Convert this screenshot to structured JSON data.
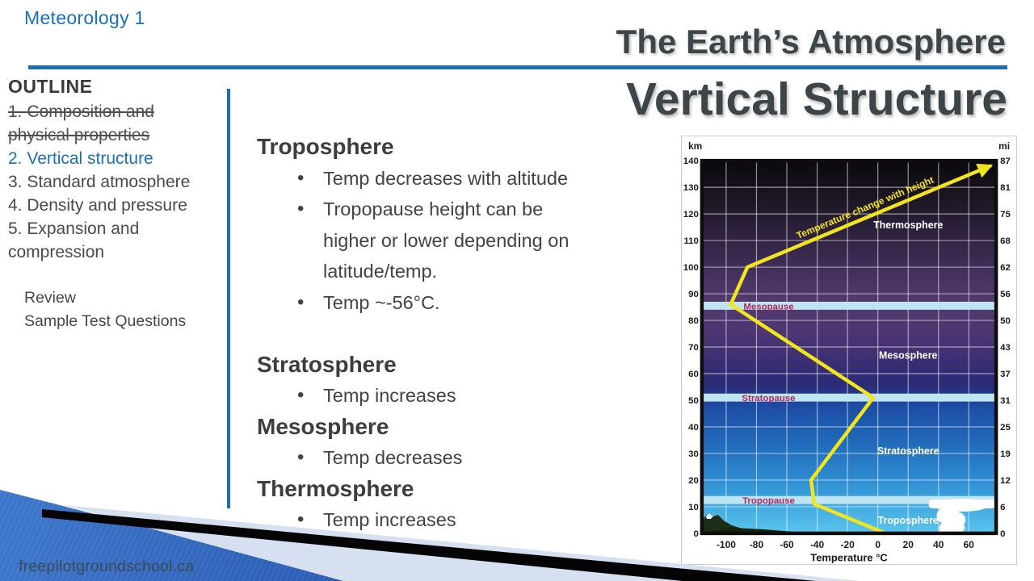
{
  "slide": {
    "course_label": "Meteorology 1",
    "title": "The Earth’s Atmosphere",
    "subtitle": "Vertical Structure",
    "watermark": "freepilotgroundschool.ca",
    "accent_color": "#1b6fb5",
    "title_color": "#3e4549"
  },
  "outline": {
    "heading": "OUTLINE",
    "items": [
      {
        "label": "1. Composition and physical properties",
        "state": "completed"
      },
      {
        "label": "2. Vertical structure",
        "state": "current"
      },
      {
        "label": "3. Standard atmosphere",
        "state": "default"
      },
      {
        "label": "4. Density and pressure",
        "state": "default"
      },
      {
        "label": "5. Expansion and compression",
        "state": "default"
      }
    ],
    "extras": [
      "Review",
      "Sample Test Questions"
    ]
  },
  "content": {
    "sections": [
      {
        "heading": "Troposphere",
        "bullets": [
          "Temp decreases with altitude",
          "Tropopause height can be higher or lower depending on latitude/temp.",
          "Temp ~-56°C."
        ]
      },
      {
        "heading": "Stratosphere",
        "bullets": [
          "Temp increases"
        ]
      },
      {
        "heading": "Mesosphere",
        "bullets": [
          "Temp decreases"
        ]
      },
      {
        "heading": "Thermosphere",
        "bullets": [
          "Temp increases"
        ]
      }
    ]
  },
  "chart_data": {
    "type": "line",
    "title": "Temperature change with height",
    "xlabel": "Temperature °C",
    "x_ticks": [
      -100,
      -80,
      -60,
      -40,
      -20,
      0,
      20,
      40,
      60
    ],
    "x_range": [
      -116,
      78
    ],
    "y_range_km": [
      0,
      140
    ],
    "y_left_unit": "km",
    "y_right_unit": "mi",
    "y_ticks": [
      {
        "km": 0,
        "mi": 0
      },
      {
        "km": 10,
        "mi": 6
      },
      {
        "km": 20,
        "mi": 12
      },
      {
        "km": 30,
        "mi": 19
      },
      {
        "km": 40,
        "mi": 25
      },
      {
        "km": 50,
        "mi": 31
      },
      {
        "km": 60,
        "mi": 37
      },
      {
        "km": 70,
        "mi": 43
      },
      {
        "km": 80,
        "mi": 50
      },
      {
        "km": 90,
        "mi": 56
      },
      {
        "km": 100,
        "mi": 62
      },
      {
        "km": 110,
        "mi": 68
      },
      {
        "km": 120,
        "mi": 75
      },
      {
        "km": 130,
        "mi": 81
      },
      {
        "km": 140,
        "mi": 87
      }
    ],
    "grid": true,
    "legend": "none",
    "series": [
      {
        "name": "Temperature profile",
        "points": [
          {
            "temp": 5,
            "km": 0
          },
          {
            "temp": -42,
            "km": 11
          },
          {
            "temp": -44,
            "km": 20
          },
          {
            "temp": -3,
            "km": 51
          },
          {
            "temp": -97,
            "km": 86
          },
          {
            "temp": -86,
            "km": 100
          },
          {
            "temp": 74,
            "km": 138
          }
        ]
      }
    ],
    "bands": [
      {
        "name": "Tropopause",
        "km": [
          11.0,
          14.0
        ],
        "label_temp": -72
      },
      {
        "name": "Stratopause",
        "km": [
          49.5,
          52.5
        ],
        "label_temp": -72
      },
      {
        "name": "Mesopause",
        "km": [
          84.0,
          87.0
        ],
        "label_temp": -72
      }
    ],
    "layer_labels": [
      {
        "name": "Troposphere",
        "temp": 20,
        "km": 5
      },
      {
        "name": "Stratosphere",
        "temp": 20,
        "km": 31
      },
      {
        "name": "Mesosphere",
        "temp": 20,
        "km": 67
      },
      {
        "name": "Thermosphere",
        "temp": 20,
        "km": 116
      }
    ],
    "colors": {
      "curve": "#f2e51c",
      "band_fill": "#bfe4f2",
      "band_text": "#b2255c",
      "layer_text": "#ffffff",
      "grid": "rgba(255,255,255,0.55)",
      "axis_text": "#1b1b1b",
      "border": "#0d0d0d"
    },
    "bg_gradient": [
      [
        0.0,
        "#0b090d"
      ],
      [
        0.1,
        "#1c1622"
      ],
      [
        0.2,
        "#2e2240"
      ],
      [
        0.3,
        "#43305c"
      ],
      [
        0.38,
        "#533a6e"
      ],
      [
        0.46,
        "#4d3572"
      ],
      [
        0.54,
        "#3b2e74"
      ],
      [
        0.6,
        "#2a2a76"
      ],
      [
        0.635,
        "#233c8e"
      ],
      [
        0.66,
        "#1d4da4"
      ],
      [
        0.75,
        "#2068b8"
      ],
      [
        0.84,
        "#2c86cc"
      ],
      [
        0.905,
        "#3ba2dc"
      ],
      [
        0.96,
        "#4db6e6"
      ],
      [
        1.0,
        "#5cc4ee"
      ]
    ]
  }
}
